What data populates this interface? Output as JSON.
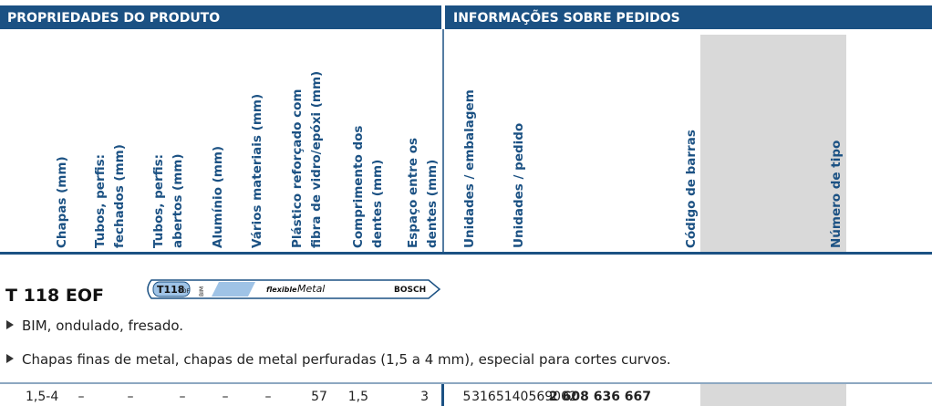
{
  "header": {
    "left": "PROPRIEDADES DO PRODUTO",
    "right": "INFORMAÇÕES SOBRE PEDIDOS"
  },
  "columns": [
    [
      "Chapas (mm)"
    ],
    [
      "Tubos, perfis:",
      "fechados (mm)"
    ],
    [
      "Tubos, perfis:",
      "abertos (mm)"
    ],
    [
      "Alumínio (mm)"
    ],
    [
      "Vários materiais (mm)"
    ],
    [
      "Plástico reforçado com",
      "fibra de vidro/epóxi (mm)"
    ],
    [
      "Comprimento dos",
      "dentes (mm)"
    ],
    [
      "Espaço entre os",
      "dentes (mm)"
    ],
    [
      "Unidades / embalagem"
    ],
    [
      "Unidades / pedido"
    ],
    [
      "Código de barras"
    ],
    [
      "Número de tipo"
    ]
  ],
  "product": {
    "name": "T 118 EOF",
    "blade": {
      "code": "T118",
      "suffix": "EOF",
      "material": "BIM",
      "line1": "flexible",
      "line2": "Metal",
      "brand": "BOSCH"
    },
    "bullets": [
      "BIM, ondulado, fresado.",
      "Chapas finas de metal, chapas de metal perfuradas (1,5 a 4 mm), especial para cortes curvos."
    ]
  },
  "row": [
    "1,5-4",
    "–",
    "–",
    "–",
    "–",
    "–",
    "57",
    "1,5",
    "3",
    "5",
    "3165140569002",
    "2 608 636 667"
  ]
}
